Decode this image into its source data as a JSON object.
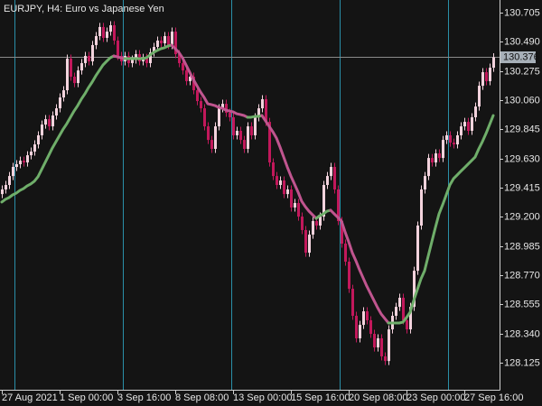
{
  "chart_data": {
    "type": "candlestick",
    "title": "EURJPY, H4:  Euro vs Japanese Yen",
    "categories": [
      "27 Aug 2021",
      null,
      null,
      null,
      null,
      null,
      null,
      null,
      null,
      null,
      null,
      null,
      null,
      null,
      null,
      null,
      "1 Sep 00:00",
      null,
      null,
      null,
      null,
      null,
      null,
      null,
      null,
      null,
      null,
      null,
      null,
      null,
      null,
      null,
      "3 Sep 16:00",
      null,
      null,
      null,
      null,
      null,
      null,
      null,
      null,
      null,
      null,
      null,
      null,
      null,
      null,
      null,
      "8 Sep 08:00",
      null,
      null,
      null,
      null,
      null,
      null,
      null,
      null,
      null,
      null,
      null,
      null,
      null,
      null,
      null,
      "13 Sep 00:00",
      null,
      null,
      null,
      null,
      null,
      null,
      null,
      null,
      null,
      null,
      null,
      null,
      null,
      null,
      null,
      "15 Sep 16:00",
      null,
      null,
      null,
      null,
      null,
      null,
      null,
      null,
      null,
      null,
      null,
      null,
      null,
      null,
      null,
      "20 Sep 08:00",
      null,
      null,
      null,
      null,
      null,
      null,
      null,
      null,
      null,
      null,
      null,
      null,
      null,
      null,
      null,
      "23 Sep 00:00",
      null,
      null,
      null,
      null,
      null,
      null,
      null,
      null,
      null,
      null,
      null,
      null,
      null,
      null,
      null,
      "27 Sep 16:00",
      null,
      null,
      null,
      null,
      null,
      null,
      null,
      null
    ],
    "open": [
      129.368,
      129.402,
      129.435,
      129.501,
      129.568,
      129.588,
      129.614,
      129.601,
      129.654,
      129.681,
      129.734,
      129.801,
      129.88,
      129.92,
      129.867,
      129.947,
      130.0,
      130.08,
      130.133,
      130.366,
      130.233,
      130.186,
      130.279,
      130.333,
      130.386,
      130.346,
      130.466,
      130.532,
      130.599,
      130.519,
      130.565,
      130.612,
      130.499,
      130.386,
      130.346,
      130.386,
      130.333,
      130.359,
      130.399,
      130.346,
      130.372,
      130.333,
      130.412,
      130.452,
      130.499,
      130.479,
      130.532,
      130.466,
      130.565,
      130.399,
      130.333,
      130.279,
      130.2,
      130.233,
      130.133,
      130.053,
      130.0,
      129.867,
      129.767,
      129.701,
      129.867,
      130.0,
      130.033,
      129.967,
      129.934,
      129.801,
      129.834,
      129.767,
      129.701,
      129.867,
      129.801,
      129.934,
      130.0,
      130.067,
      129.9,
      129.601,
      129.501,
      129.435,
      129.468,
      129.368,
      129.402,
      129.269,
      129.302,
      129.202,
      129.103,
      128.936,
      129.069,
      129.169,
      129.136,
      129.202,
      129.435,
      129.501,
      129.568,
      129.402,
      129.169,
      129.003,
      128.87,
      128.67,
      128.471,
      128.305,
      128.404,
      128.504,
      128.438,
      128.338,
      128.238,
      128.305,
      128.172,
      128.138,
      128.371,
      128.471,
      128.537,
      128.604,
      128.438,
      128.371,
      128.537,
      128.803,
      129.136,
      129.402,
      129.501,
      129.634,
      129.601,
      129.668,
      129.634,
      129.767,
      129.801,
      129.747,
      129.734,
      129.801,
      129.867,
      129.9,
      129.834,
      129.934,
      130.013,
      130.166,
      130.266,
      130.2,
      130.299
    ],
    "high": [
      129.432,
      129.465,
      129.531,
      129.598,
      129.618,
      129.644,
      129.644,
      129.684,
      129.711,
      129.764,
      129.831,
      129.91,
      129.95,
      129.95,
      129.977,
      130.03,
      130.11,
      130.163,
      130.396,
      130.396,
      130.263,
      130.309,
      130.363,
      130.416,
      130.416,
      130.496,
      130.562,
      130.629,
      130.629,
      130.595,
      130.642,
      130.642,
      130.529,
      130.416,
      130.416,
      130.416,
      130.389,
      130.429,
      130.429,
      130.402,
      130.402,
      130.442,
      130.482,
      130.529,
      130.529,
      130.562,
      130.562,
      130.595,
      130.595,
      130.429,
      130.363,
      130.309,
      130.263,
      130.263,
      130.163,
      130.083,
      130.03,
      129.897,
      129.797,
      129.897,
      130.03,
      130.063,
      130.063,
      129.997,
      129.964,
      129.864,
      129.864,
      129.797,
      129.897,
      129.897,
      129.964,
      130.03,
      130.097,
      130.097,
      129.93,
      129.631,
      129.531,
      129.498,
      129.498,
      129.432,
      129.432,
      129.332,
      129.332,
      129.232,
      129.133,
      129.099,
      129.199,
      129.199,
      129.232,
      129.465,
      129.531,
      129.598,
      129.598,
      129.432,
      129.199,
      129.033,
      128.9,
      128.7,
      128.501,
      128.434,
      128.534,
      128.534,
      128.468,
      128.368,
      128.335,
      128.335,
      128.202,
      128.401,
      128.501,
      128.567,
      128.634,
      128.634,
      128.468,
      128.567,
      128.833,
      129.166,
      129.432,
      129.531,
      129.664,
      129.664,
      129.698,
      129.698,
      129.797,
      129.831,
      129.831,
      129.777,
      129.831,
      129.897,
      129.93,
      129.93,
      129.964,
      130.043,
      130.196,
      130.296,
      130.296,
      130.329,
      130.406
    ],
    "low": [
      129.338,
      129.372,
      129.405,
      129.471,
      129.538,
      129.558,
      129.571,
      129.571,
      129.624,
      129.651,
      129.704,
      129.771,
      129.85,
      129.837,
      129.837,
      129.917,
      129.97,
      130.05,
      130.103,
      130.203,
      130.156,
      130.156,
      130.249,
      130.303,
      130.316,
      130.316,
      130.436,
      130.502,
      130.489,
      130.489,
      130.535,
      130.469,
      130.356,
      130.316,
      130.316,
      130.303,
      130.303,
      130.329,
      130.316,
      130.316,
      130.303,
      130.303,
      130.382,
      130.422,
      130.449,
      130.449,
      130.436,
      130.436,
      130.369,
      130.303,
      130.249,
      130.17,
      130.17,
      130.103,
      130.023,
      129.97,
      129.837,
      129.737,
      129.671,
      129.671,
      129.837,
      129.97,
      129.937,
      129.904,
      129.771,
      129.771,
      129.737,
      129.671,
      129.671,
      129.771,
      129.771,
      129.904,
      129.97,
      129.87,
      129.571,
      129.471,
      129.405,
      129.405,
      129.338,
      129.338,
      129.239,
      129.239,
      129.172,
      129.073,
      128.906,
      128.906,
      129.039,
      129.106,
      129.106,
      129.172,
      129.405,
      129.471,
      129.372,
      129.139,
      128.973,
      128.84,
      128.64,
      128.441,
      128.275,
      128.275,
      128.374,
      128.408,
      128.308,
      128.208,
      128.208,
      128.142,
      128.108,
      128.108,
      128.341,
      128.441,
      128.507,
      128.408,
      128.341,
      128.341,
      128.507,
      128.773,
      129.106,
      129.372,
      129.471,
      129.571,
      129.571,
      129.604,
      129.604,
      129.737,
      129.717,
      129.704,
      129.704,
      129.771,
      129.837,
      129.804,
      129.804,
      129.904,
      129.983,
      130.136,
      130.17,
      130.17,
      130.269
    ],
    "close": [
      129.402,
      129.435,
      129.501,
      129.568,
      129.588,
      129.614,
      129.601,
      129.654,
      129.681,
      129.734,
      129.801,
      129.88,
      129.92,
      129.867,
      129.947,
      130.0,
      130.08,
      130.133,
      130.366,
      130.233,
      130.186,
      130.279,
      130.333,
      130.386,
      130.346,
      130.466,
      130.532,
      130.599,
      130.519,
      130.565,
      130.612,
      130.499,
      130.386,
      130.346,
      130.386,
      130.333,
      130.359,
      130.399,
      130.346,
      130.372,
      130.333,
      130.412,
      130.452,
      130.499,
      130.479,
      130.532,
      130.466,
      130.565,
      130.399,
      130.333,
      130.279,
      130.2,
      130.233,
      130.133,
      130.053,
      130.0,
      129.867,
      129.767,
      129.701,
      129.867,
      130.0,
      130.033,
      129.967,
      129.934,
      129.801,
      129.834,
      129.767,
      129.701,
      129.867,
      129.801,
      129.934,
      130.0,
      130.067,
      129.9,
      129.601,
      129.501,
      129.435,
      129.468,
      129.368,
      129.402,
      129.269,
      129.302,
      129.202,
      129.103,
      128.936,
      129.069,
      129.169,
      129.136,
      129.202,
      129.435,
      129.501,
      129.568,
      129.402,
      129.169,
      129.003,
      128.87,
      128.67,
      128.471,
      128.305,
      128.404,
      128.504,
      128.438,
      128.338,
      128.238,
      128.305,
      128.172,
      128.138,
      128.371,
      128.471,
      128.537,
      128.604,
      128.438,
      128.371,
      128.537,
      128.803,
      129.136,
      129.402,
      129.501,
      129.634,
      129.601,
      129.668,
      129.634,
      129.767,
      129.801,
      129.747,
      129.734,
      129.801,
      129.867,
      129.9,
      129.834,
      129.934,
      130.013,
      130.166,
      130.266,
      130.2,
      130.299,
      130.376
    ],
    "up_color": "#f3d3dd",
    "down_color": "#c2185b",
    "indicator": {
      "values": [
        129.309,
        129.329,
        129.342,
        129.362,
        129.375,
        129.395,
        129.408,
        129.428,
        129.442,
        129.462,
        129.495,
        129.548,
        129.601,
        129.654,
        129.708,
        129.754,
        129.801,
        129.847,
        129.887,
        129.934,
        129.98,
        130.02,
        130.067,
        130.107,
        130.153,
        130.193,
        130.239,
        130.279,
        130.319,
        130.346,
        130.372,
        130.386,
        130.379,
        130.372,
        130.366,
        130.366,
        130.366,
        130.366,
        130.366,
        130.366,
        130.372,
        130.392,
        130.412,
        130.426,
        130.439,
        130.446,
        130.459,
        130.466,
        130.439,
        130.412,
        130.372,
        130.319,
        130.266,
        130.213,
        130.166,
        130.12,
        130.08,
        130.033,
        130.027,
        130.02,
        130.007,
        130.0,
        129.987,
        129.98,
        129.974,
        129.96,
        129.954,
        129.947,
        129.934,
        129.934,
        129.94,
        129.94,
        129.947,
        129.907,
        129.867,
        129.827,
        129.781,
        129.714,
        129.641,
        129.568,
        129.501,
        129.442,
        129.382,
        129.315,
        129.275,
        129.242,
        129.215,
        129.189,
        129.209,
        129.222,
        129.242,
        129.249,
        129.222,
        129.196,
        129.169,
        129.089,
        129.016,
        128.936,
        128.876,
        128.81,
        128.75,
        128.69,
        128.637,
        128.584,
        128.531,
        128.484,
        128.451,
        128.418,
        128.418,
        128.418,
        128.418,
        128.424,
        128.458,
        128.497,
        128.584,
        128.664,
        128.743,
        128.803,
        128.91,
        129.016,
        129.122,
        129.222,
        129.289,
        129.362,
        129.435,
        129.481,
        129.508,
        129.535,
        129.561,
        129.588,
        129.614,
        129.641,
        129.701,
        129.754,
        129.814,
        129.88,
        129.947
      ],
      "rising_color": "#6fae6a",
      "falling_color": "#c0558f"
    },
    "separators": [
      4,
      34,
      64,
      94,
      124
    ],
    "separator_color": "#2a8fa8",
    "ylim": [
      127.926,
      130.798
    ],
    "yticks": [
      130.705,
      {
        "value": 130.49,
        "label": "130.490"
      },
      130.275,
      {
        "value": 130.06,
        "label": "130.060"
      },
      129.845,
      {
        "value": 129.63,
        "label": "129.630"
      },
      129.415,
      {
        "value": 129.2,
        "label": "129.200"
      },
      128.985,
      {
        "value": 128.77,
        "label": "128.770"
      },
      128.555,
      {
        "value": 128.34,
        "label": "128.340"
      },
      128.125
    ]
  }
}
